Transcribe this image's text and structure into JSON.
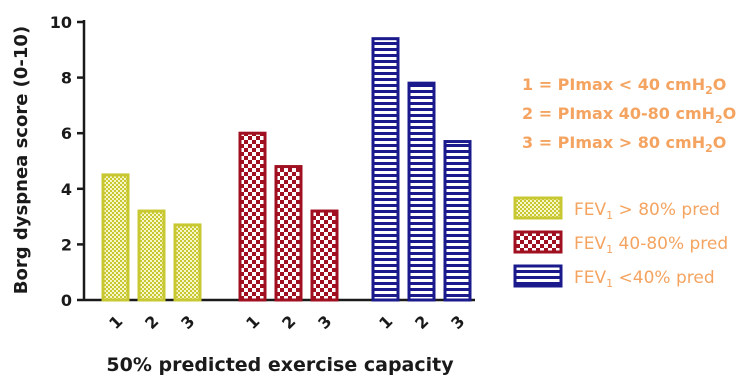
{
  "chart_data": {
    "type": "bar",
    "xlabel": "50% predicted exercise capacity",
    "ylabel": "Borg dyspnea score (0-10)",
    "ylim": [
      0,
      10
    ],
    "yticks": [
      "0",
      "2",
      "4",
      "6",
      "8",
      "10"
    ],
    "categories": [
      "1",
      "2",
      "3"
    ],
    "series": [
      {
        "name": "FEV1 > 80% pred",
        "values": [
          4.5,
          3.2,
          2.7
        ],
        "color": "#c8c832",
        "pattern": "fine-dots"
      },
      {
        "name": "FEV1 40-80% pred",
        "values": [
          6.0,
          4.8,
          3.2
        ],
        "color": "#a01020",
        "pattern": "checker"
      },
      {
        "name": "FEV1 <40% pred",
        "values": [
          9.4,
          7.8,
          5.7
        ],
        "color": "#1a1a8c",
        "pattern": "horizontal-lines"
      }
    ],
    "legend_position": "right",
    "annotations": [
      {
        "prefix": "1 = PImax < 40 cmH",
        "sub": "2",
        "suffix": "O"
      },
      {
        "prefix": "2 = PImax 40-80 cmH",
        "sub": "2",
        "suffix": "O"
      },
      {
        "prefix": "3 = PImax > 80 cmH",
        "sub": "2",
        "suffix": "O"
      }
    ],
    "annotation_color": "#f4a460",
    "legend_text_color": "#f4a460"
  }
}
